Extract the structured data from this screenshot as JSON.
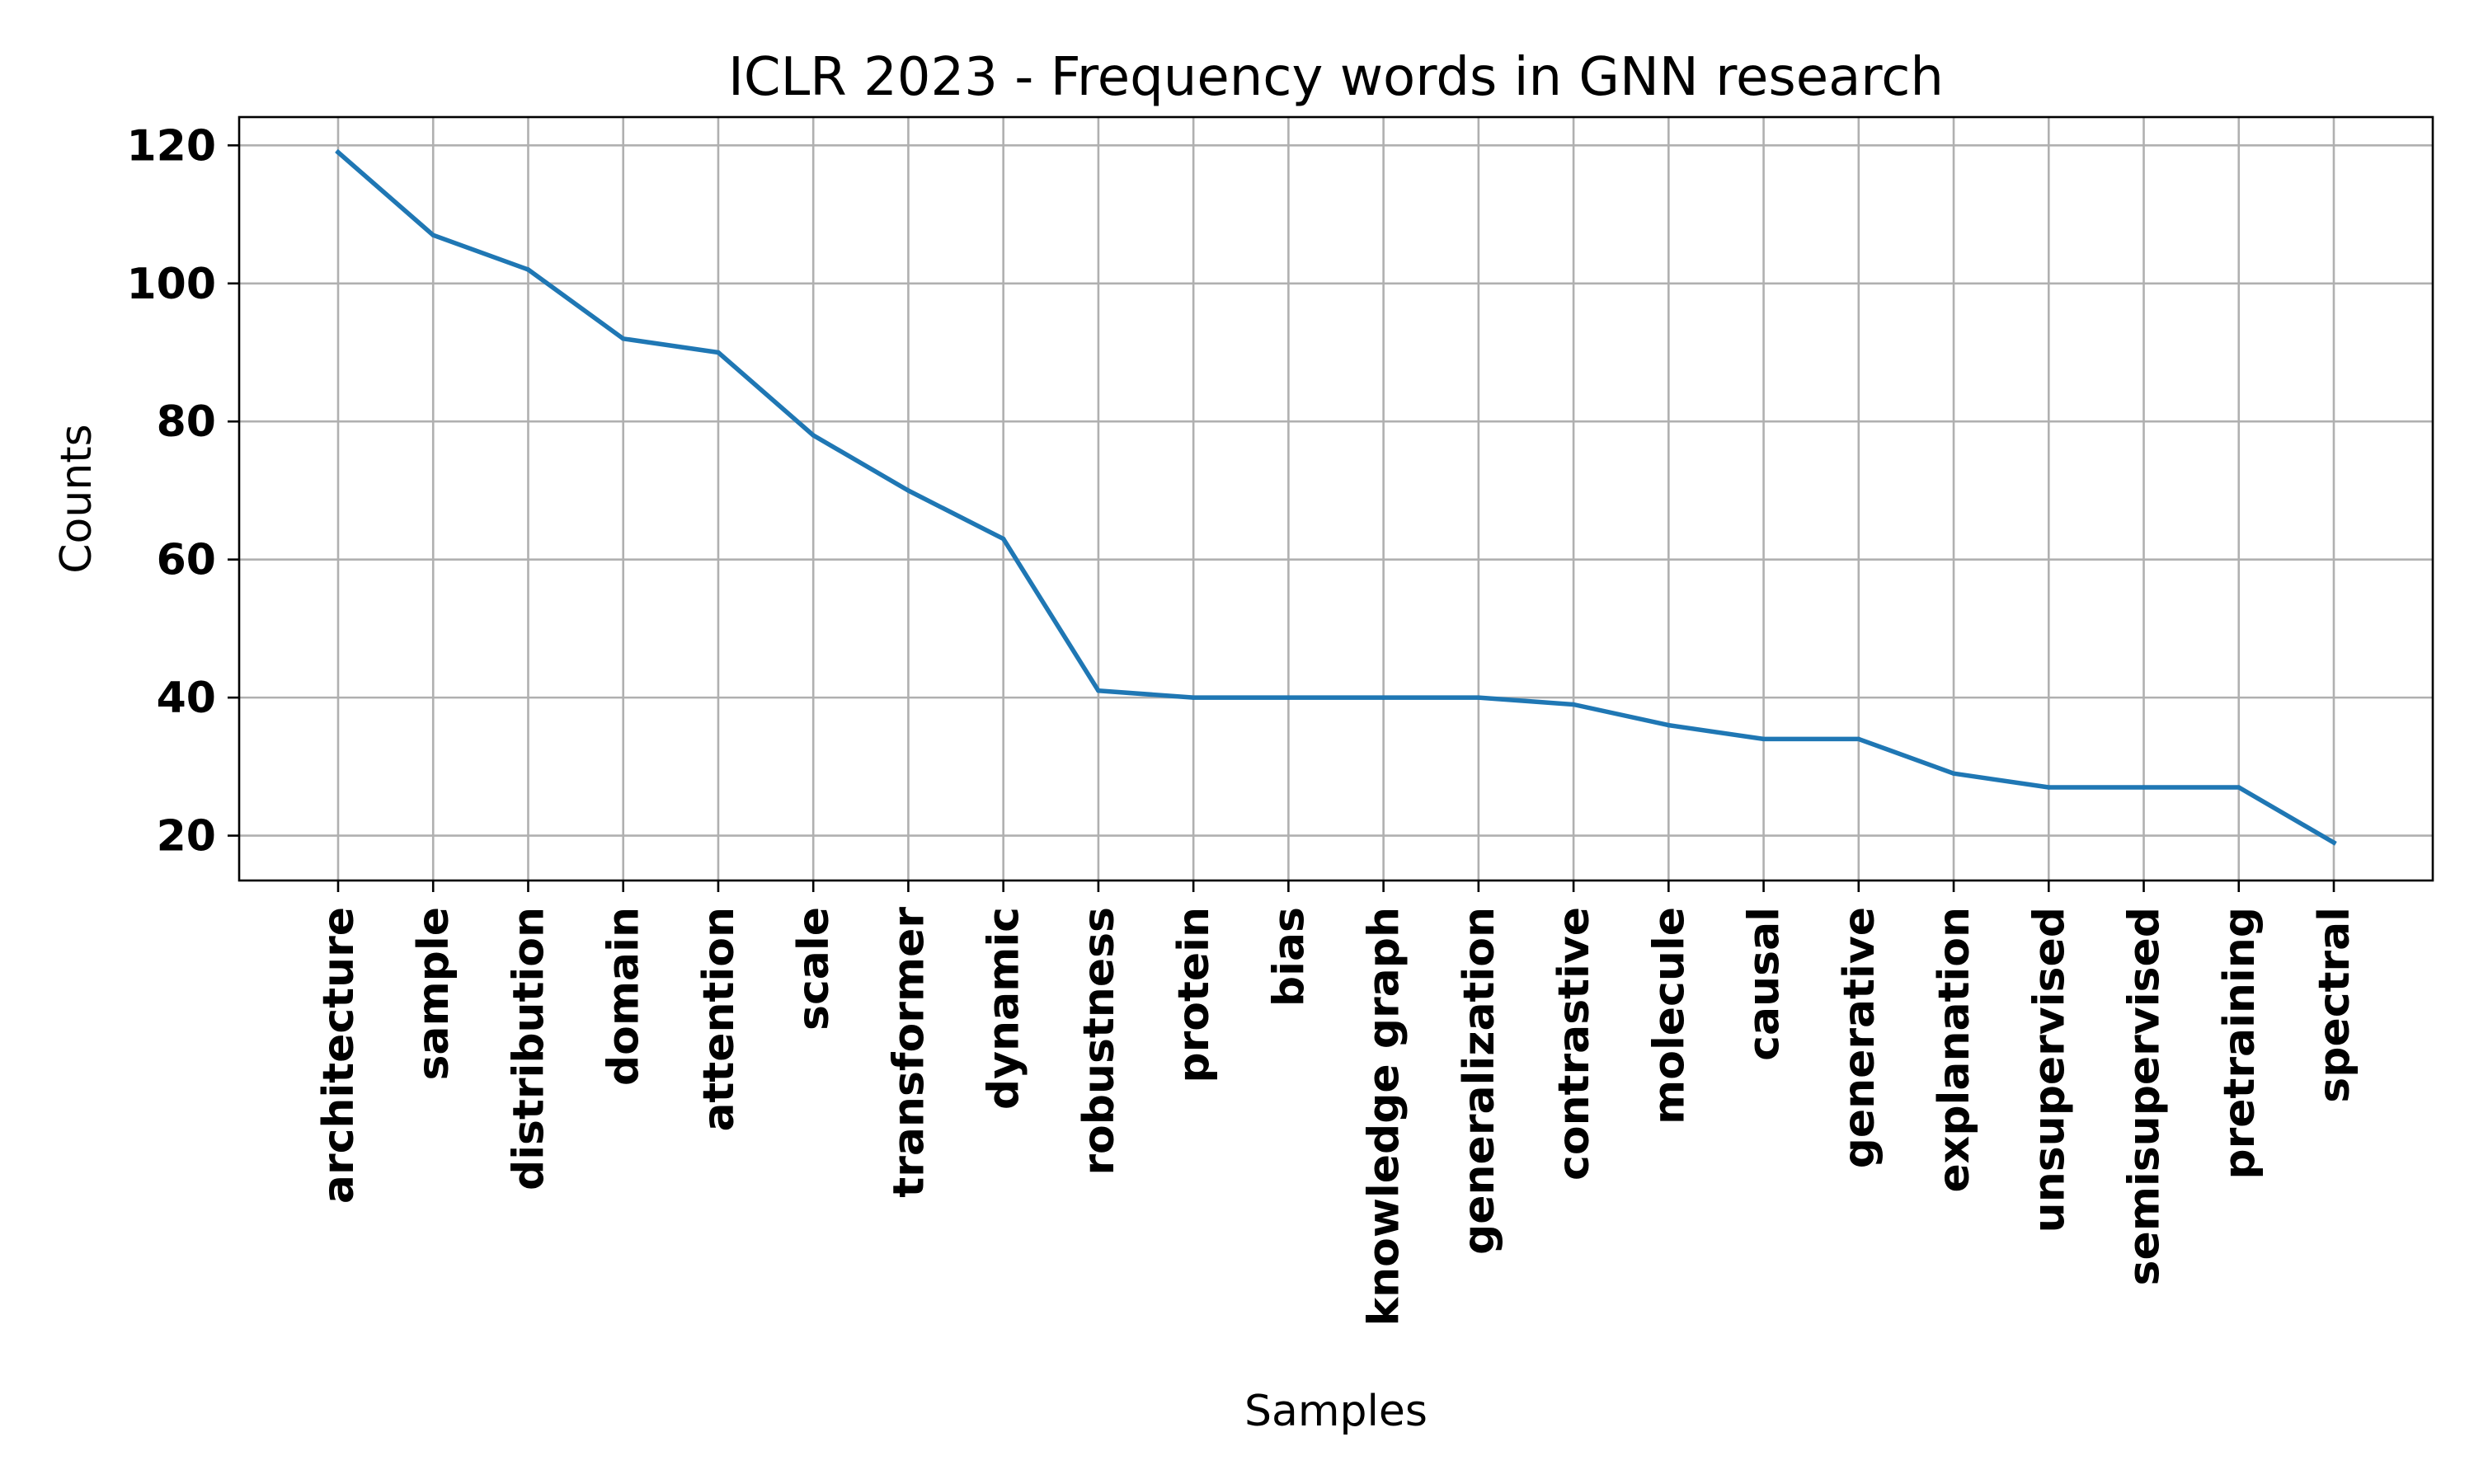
{
  "chart_data": {
    "type": "line",
    "title": "ICLR 2023 - Frequency words in GNN research",
    "xlabel": "Samples",
    "ylabel": "Counts",
    "categories": [
      "architecture",
      "sample",
      "distribution",
      "domain",
      "attention",
      "scale",
      "transformer",
      "dynamic",
      "robustness",
      "protein",
      "bias",
      "knowledge graph",
      "generalization",
      "contrastive",
      "molecule",
      "causal",
      "generative",
      "explanation",
      "unsupervised",
      "semisupervised",
      "pretraining",
      "spectral"
    ],
    "series": [
      {
        "values": [
          119,
          107,
          102,
          92,
          90,
          78,
          70,
          63,
          41,
          40,
          40,
          40,
          40,
          39,
          36,
          34,
          34,
          29,
          27,
          27,
          27,
          19
        ],
        "color": "#1f77b4"
      }
    ],
    "ylim": [
      13.5,
      124.1
    ],
    "yticks": [
      20,
      40,
      60,
      80,
      100,
      120
    ],
    "grid": true,
    "legend": "none"
  }
}
